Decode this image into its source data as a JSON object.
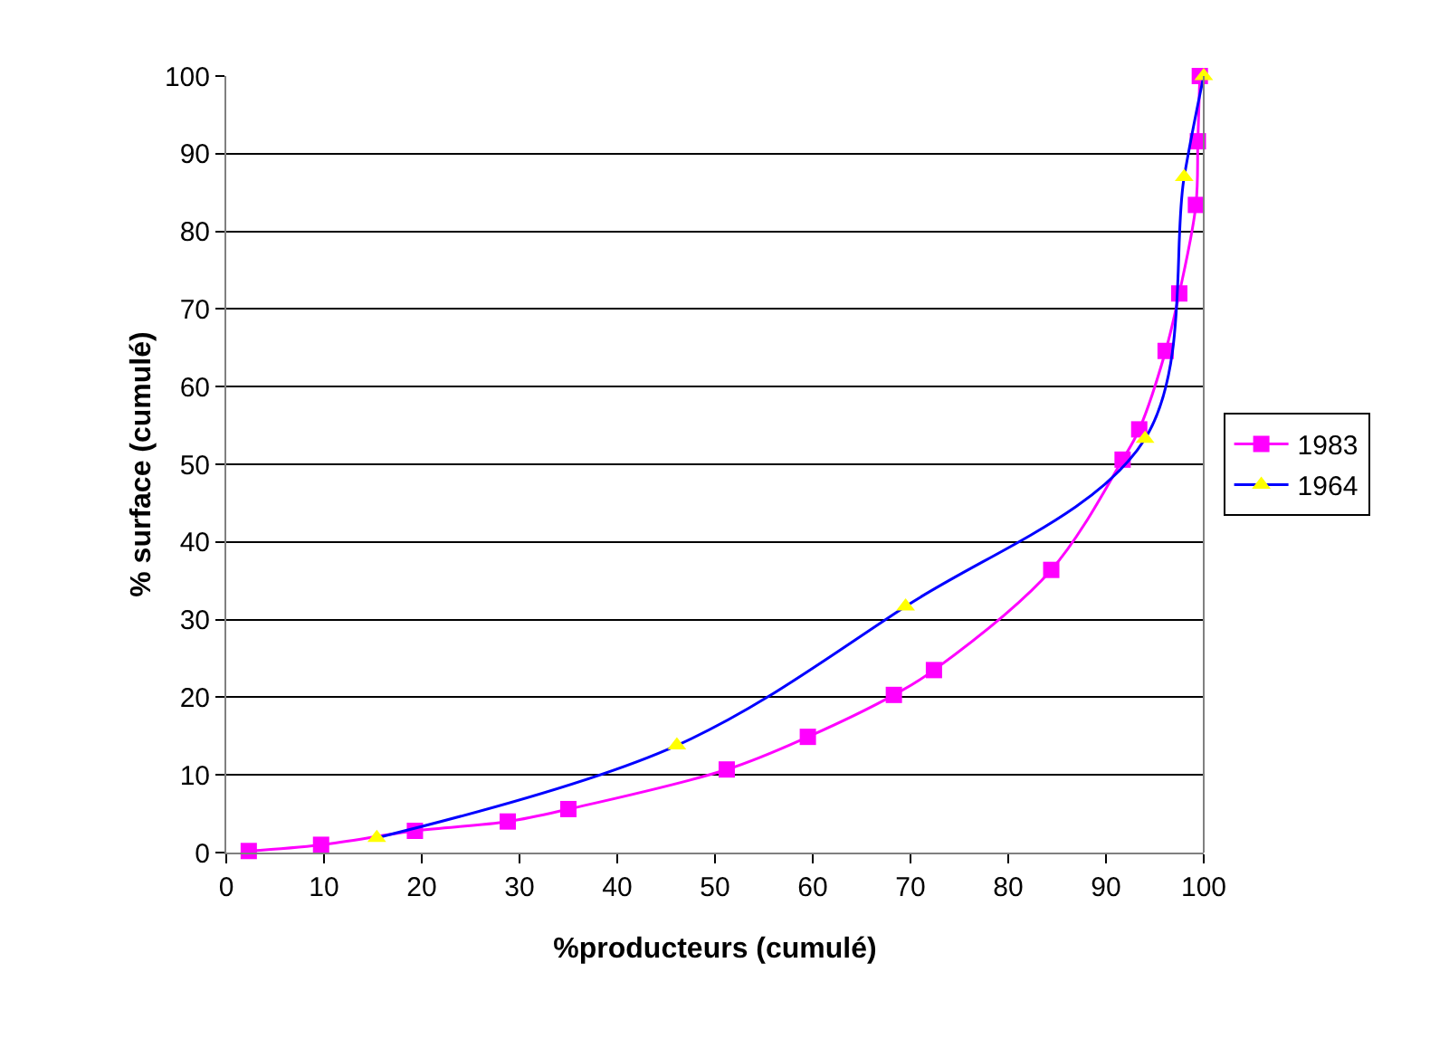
{
  "chart_data": {
    "type": "line",
    "xlabel": "%producteurs (cumulé)",
    "ylabel": "% surface (cumulé)",
    "xlim": [
      0,
      100
    ],
    "xticks": [
      0,
      10,
      20,
      30,
      40,
      50,
      60,
      70,
      80,
      90,
      100
    ],
    "ylim": [
      0,
      100
    ],
    "yticks": [
      0,
      10,
      20,
      30,
      40,
      50,
      60,
      70,
      80,
      90,
      100
    ],
    "grid": "y",
    "legend": "right",
    "series": [
      {
        "name": "1983",
        "color": "#ff00ff",
        "marker": "square",
        "x": [
          2.3,
          9.7,
          19.3,
          28.8,
          35,
          51.2,
          59.5,
          68.3,
          72.4,
          84.4,
          91.7,
          93.4,
          96.1,
          97.5,
          99.2,
          99.4,
          99.6
        ],
        "values": [
          0.2,
          1,
          2.8,
          4,
          5.6,
          10.7,
          14.9,
          20.3,
          23.5,
          36.4,
          50.6,
          54.5,
          64.6,
          72,
          83.4,
          91.6,
          100
        ]
      },
      {
        "name": "1964",
        "color": "#0000ff",
        "colors": [
          "#ffff00",
          "#ffff00",
          "#ffff00",
          "#ffff00",
          "#ffff00",
          "#ffff00"
        ],
        "marker": "triangle",
        "x": [
          15.4,
          46.1,
          69.5,
          94,
          98,
          100
        ],
        "values": [
          1.9,
          13.8,
          31.7,
          53.3,
          87,
          100
        ]
      }
    ]
  }
}
